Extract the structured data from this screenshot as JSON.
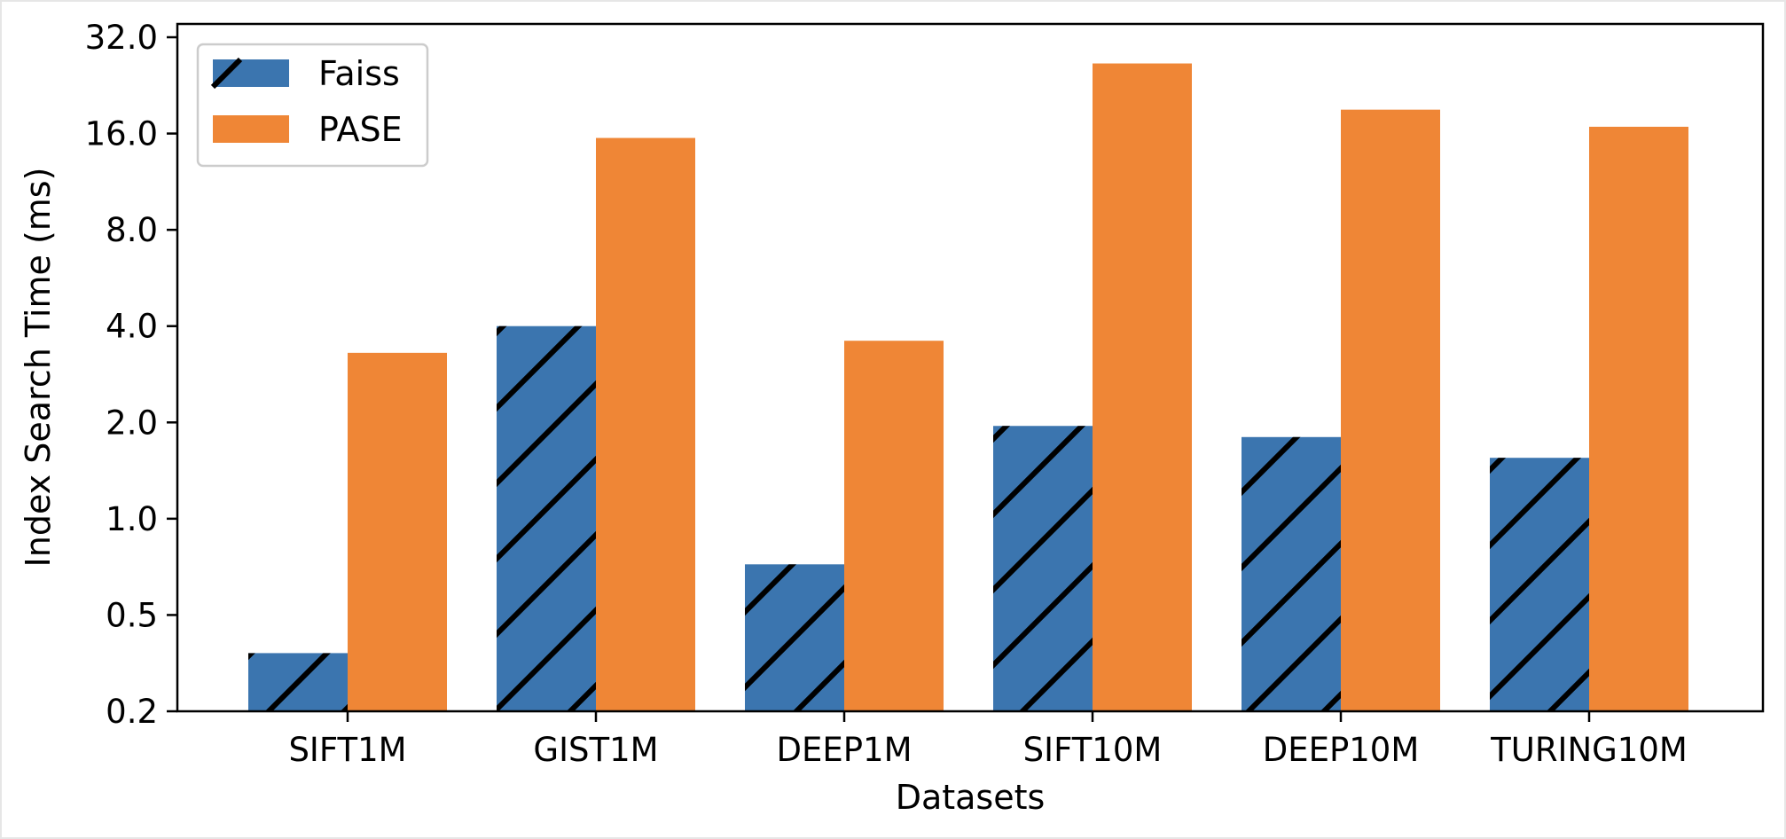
{
  "chart_data": {
    "type": "bar",
    "title": "",
    "xlabel": "Datasets",
    "ylabel": "Index Search Time (ms)",
    "yscale": "log2",
    "ylim": [
      0.25,
      35
    ],
    "yticks": [
      0.2,
      0.5,
      1.0,
      2.0,
      4.0,
      8.0,
      16.0,
      32.0
    ],
    "ytick_labels": [
      "0.2",
      "0.5",
      "1.0",
      "2.0",
      "4.0",
      "8.0",
      "16.0",
      "32.0"
    ],
    "categories": [
      "SIFT1M",
      "GIST1M",
      "DEEP1M",
      "SIFT10M",
      "DEEP10M",
      "TURING10M"
    ],
    "series": [
      {
        "name": "Faiss",
        "color": "#3b75af",
        "hatch": "diagonal",
        "values": [
          0.38,
          4.0,
          0.72,
          1.95,
          1.8,
          1.55
        ]
      },
      {
        "name": "PASE",
        "color": "#ef8636",
        "hatch": "none",
        "values": [
          3.3,
          15.5,
          3.6,
          26.5,
          19.0,
          16.8
        ]
      }
    ],
    "legend": {
      "position": "top-left"
    },
    "grid": false
  }
}
